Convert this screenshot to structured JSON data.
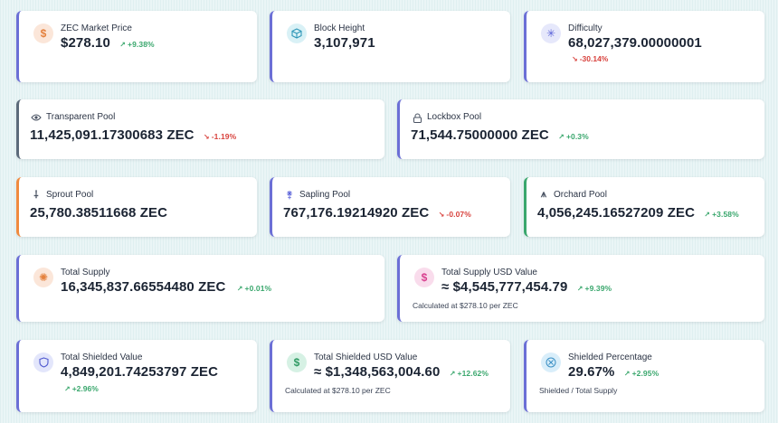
{
  "cards": {
    "zec_price": {
      "label": "ZEC Market Price",
      "value": "$278.10",
      "change": "+9.38%",
      "icon": "dollar-icon"
    },
    "block_height": {
      "label": "Block Height",
      "value": "3,107,971",
      "icon": "cube-icon"
    },
    "difficulty": {
      "label": "Difficulty",
      "value": "68,027,379.00000001",
      "change": "-30.14%",
      "icon": "sparkle-icon"
    },
    "transparent_pool": {
      "label": "Transparent Pool",
      "value": "11,425,091.17300683 ZEC",
      "change": "-1.19%",
      "icon": "eye-icon"
    },
    "lockbox_pool": {
      "label": "Lockbox Pool",
      "value": "71,544.75000000 ZEC",
      "change": "+0.3%",
      "icon": "lock-icon"
    },
    "sprout_pool": {
      "label": "Sprout Pool",
      "value": "25,780.38511668 ZEC",
      "icon": "sprout-icon"
    },
    "sapling_pool": {
      "label": "Sapling Pool",
      "value": "767,176.19214920 ZEC",
      "change": "-0.07%",
      "icon": "sapling-icon"
    },
    "orchard_pool": {
      "label": "Orchard Pool",
      "value": "4,056,245.16527209 ZEC",
      "change": "+3.58%",
      "icon": "orchard-icon"
    },
    "total_supply": {
      "label": "Total Supply",
      "value": "16,345,837.66554480 ZEC",
      "change": "+0.01%",
      "icon": "sunburst-icon"
    },
    "total_supply_usd": {
      "label": "Total Supply USD Value",
      "value": "≈ $4,545,777,454.79",
      "change": "+9.39%",
      "note": "Calculated at $278.10 per ZEC",
      "icon": "dollar-icon"
    },
    "total_shielded": {
      "label": "Total Shielded Value",
      "value": "4,849,201.74253797 ZEC",
      "change": "+2.96%",
      "icon": "shield-icon"
    },
    "total_shielded_usd": {
      "label": "Total Shielded USD Value",
      "value": "≈ $1,348,563,004.60",
      "change": "+12.62%",
      "note": "Calculated at $278.10 per ZEC",
      "icon": "dollar-circle-icon"
    },
    "shielded_pct": {
      "label": "Shielded Percentage",
      "value": "29.67%",
      "change": "+2.95%",
      "note": "Shielded / Total Supply",
      "icon": "percent-circle-icon"
    }
  },
  "colors": {
    "accent_indigo": "#6b6fd6",
    "accent_orange": "#f08a3e",
    "accent_green": "#3aa76d",
    "accent_slate": "#5c6a7a",
    "up": "#3aa76d",
    "down": "#d8423d"
  }
}
